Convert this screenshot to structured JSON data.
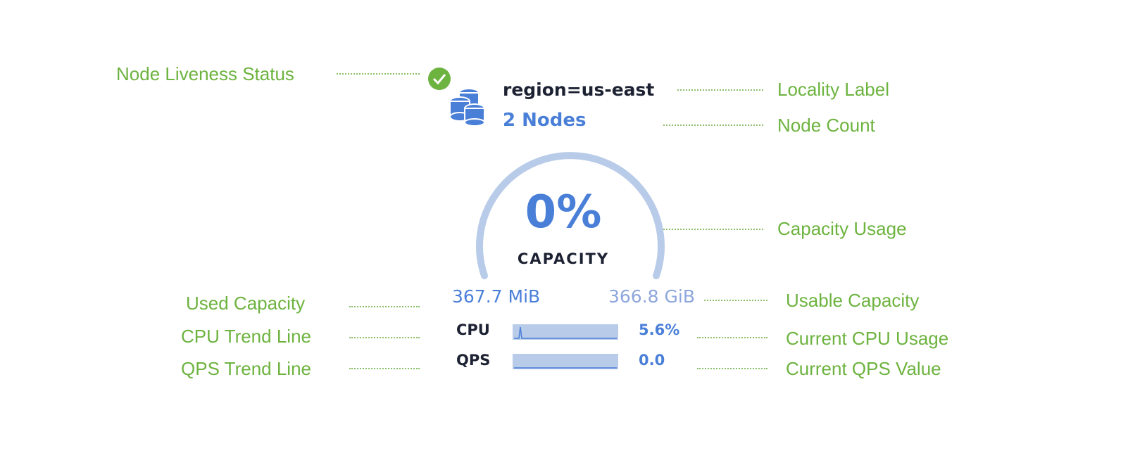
{
  "annotations": {
    "liveness": "Node Liveness Status",
    "locality": "Locality Label",
    "node_count": "Node Count",
    "capacity_usage": "Capacity Usage",
    "used_capacity": "Used Capacity",
    "usable_capacity": "Usable Capacity",
    "cpu_trend": "CPU Trend Line",
    "current_cpu": "Current CPU Usage",
    "qps_trend": "QPS Trend Line",
    "current_qps": "Current QPS Value"
  },
  "node": {
    "liveness_status": "live",
    "locality": "region=us-east",
    "node_count": "2 Nodes",
    "capacity_percent": "0%",
    "capacity_fraction": 0.0,
    "capacity_label": "CAPACITY",
    "used": "367.7 MiB",
    "usable": "366.8 GiB",
    "cpu_label": "CPU",
    "cpu_value": "5.6%",
    "qps_label": "QPS",
    "qps_value": "0.0"
  },
  "colors": {
    "annotation": "#6db33f",
    "accent": "#4a7fd8",
    "gauge_track": "#b8cbe9",
    "status_ok": "#6db33f"
  }
}
